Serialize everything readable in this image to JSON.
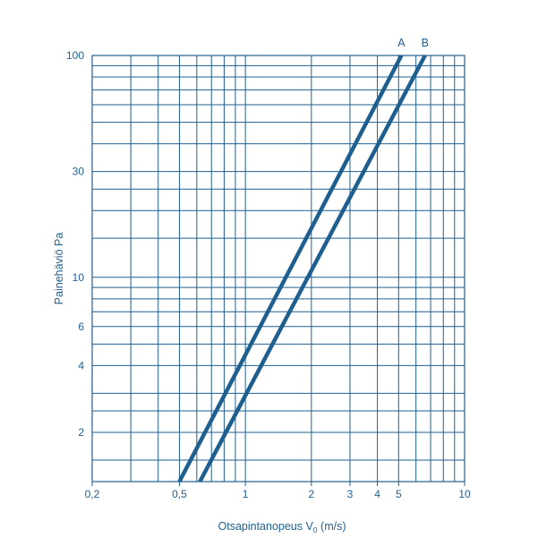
{
  "chart_data": {
    "type": "line",
    "title": "",
    "xlabel": "Otsapintanopeus V",
    "xlabel_subscript": "0",
    "xlabel_suffix": " (m/s)",
    "ylabel": "Painehäviö Pa",
    "x_scale": "log",
    "y_scale": "log",
    "xlim": [
      0.2,
      10
    ],
    "ylim": [
      1.2,
      100
    ],
    "grid": true,
    "x_ticks": [
      {
        "value": 0.2,
        "label": "0,2"
      },
      {
        "value": 0.5,
        "label": "0,5"
      },
      {
        "value": 1,
        "label": "1"
      },
      {
        "value": 2,
        "label": "2"
      },
      {
        "value": 3,
        "label": "3"
      },
      {
        "value": 4,
        "label": "4"
      },
      {
        "value": 5,
        "label": "5"
      },
      {
        "value": 10,
        "label": "10"
      }
    ],
    "y_ticks": [
      {
        "value": 2,
        "label": "2"
      },
      {
        "value": 4,
        "label": "4"
      },
      {
        "value": 6,
        "label": "6"
      },
      {
        "value": 10,
        "label": "10"
      },
      {
        "value": 30,
        "label": "30"
      },
      {
        "value": 100,
        "label": "100"
      }
    ],
    "x_gridlines": [
      0.2,
      0.3,
      0.4,
      0.5,
      0.6,
      0.7,
      0.8,
      0.9,
      1,
      2,
      3,
      4,
      5,
      6,
      7,
      8,
      9,
      10
    ],
    "y_gridlines": [
      1.2,
      1.5,
      2,
      2.5,
      3,
      4,
      5,
      6,
      7,
      8,
      9,
      10,
      15,
      20,
      25,
      30,
      40,
      50,
      60,
      70,
      80,
      90,
      100
    ],
    "series": [
      {
        "name": "A",
        "x": [
          0.5,
          5.15
        ],
        "y": [
          1.2,
          100
        ]
      },
      {
        "name": "B",
        "x": [
          0.62,
          6.6
        ],
        "y": [
          1.2,
          100
        ]
      }
    ],
    "colors": {
      "line": "#1f5f8f",
      "grid": "#1f5f8f",
      "text": "#1f5f8f"
    }
  }
}
